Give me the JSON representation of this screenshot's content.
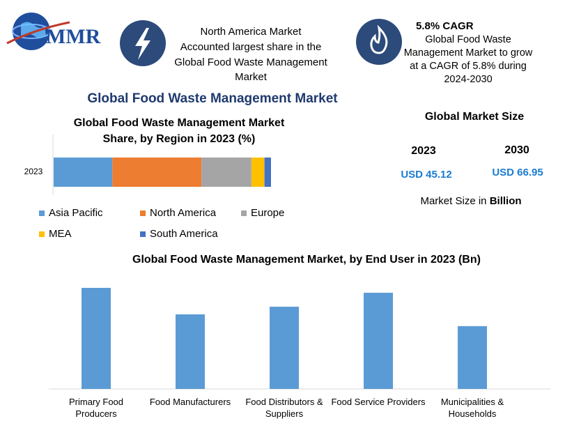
{
  "header": {
    "logo": "MMR",
    "info_1": "North America Market\nAccounted largest share in the\nGlobal Food Waste Management\nMarket",
    "info_2_title": "5.8% CAGR",
    "info_2": "Global Food Waste\nManagement Market to grow\nat a CAGR of 5.8% during\n2024-2030"
  },
  "title": "Global Food Waste Management Market",
  "chart_data": [
    {
      "type": "bar",
      "orientation": "horizontal",
      "stacked": true,
      "title": "Global Food Waste Management Market\nShare, by Region in 2023 (%)",
      "categories": [
        "2023"
      ],
      "series": [
        {
          "name": "Asia Pacific",
          "color": "#5b9bd5",
          "values": [
            27
          ]
        },
        {
          "name": "North America",
          "color": "#ed7d31",
          "values": [
            41
          ]
        },
        {
          "name": "Europe",
          "color": "#a5a5a5",
          "values": [
            23
          ]
        },
        {
          "name": "MEA",
          "color": "#ffc000",
          "values": [
            6
          ]
        },
        {
          "name": "South America",
          "color": "#4472c4",
          "values": [
            3
          ]
        }
      ]
    },
    {
      "type": "bar",
      "title": "Global Food Waste Management Market, by End User in 2023 (Bn)",
      "categories": [
        "Primary Food\nProducers",
        "Food Manufacturers",
        "Food Distributors &\nSuppliers",
        "Food Service Providers",
        "Municipalities &\nHouseholds"
      ],
      "values": [
        10.94,
        8.07,
        8.9,
        10.41,
        6.8
      ],
      "color": "#5b9bd5"
    }
  ],
  "market_size": {
    "title": "Global Market Size",
    "years": [
      "2023",
      "2030"
    ],
    "values": [
      "USD 45.12",
      "USD 66.95"
    ],
    "note": "Market Size in",
    "note_bold": "Billion"
  }
}
